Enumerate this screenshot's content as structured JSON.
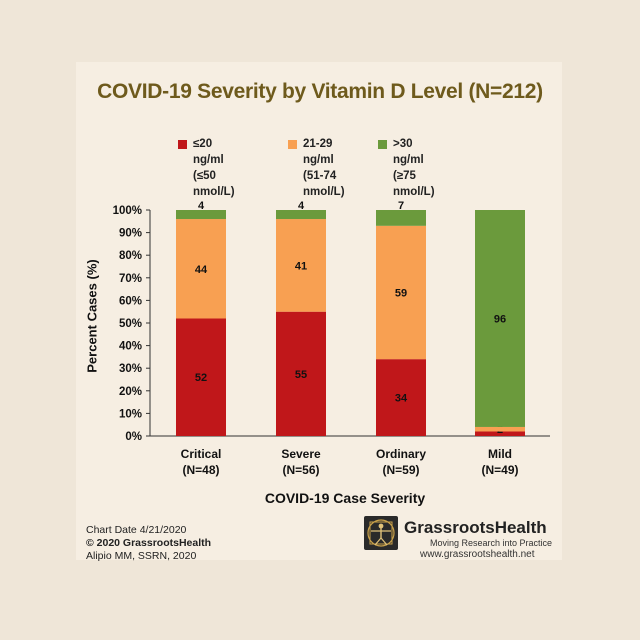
{
  "colors": {
    "low": "#c0171a",
    "mid": "#f8a052",
    "high": "#6b9a3c",
    "title": "#6e5a1c"
  },
  "chart_data": {
    "type": "bar",
    "stacked": true,
    "title": "COVID-19 Severity by Vitamin D Level (N=212)",
    "xlabel": "COVID-19 Case Severity",
    "ylabel": "Percent Cases (%)",
    "ylim": [
      0,
      100
    ],
    "yticks": [
      "0%",
      "10%",
      "20%",
      "30%",
      "40%",
      "50%",
      "60%",
      "70%",
      "80%",
      "90%",
      "100%"
    ],
    "categories": [
      "Critical\n(N=48)",
      "Severe\n(N=56)",
      "Ordinary\n(N=59)",
      "Mild\n(N=49)"
    ],
    "series": [
      {
        "name": "≤20 ng/ml\n(≤50 nmol/L)",
        "values": [
          52,
          55,
          34,
          2
        ]
      },
      {
        "name": "21-29 ng/ml\n(51-74 nmol/L)",
        "values": [
          44,
          41,
          59,
          2
        ]
      },
      {
        "name": ">30 ng/ml\n(≥75 nmol/L)",
        "values": [
          4,
          4,
          7,
          96
        ]
      }
    ],
    "data_labels": [
      [
        "52",
        "55",
        "34",
        "2"
      ],
      [
        "44",
        "41",
        "59",
        ""
      ],
      [
        "4",
        "4",
        "7",
        "96"
      ]
    ],
    "legend_position": "top",
    "grid": false
  },
  "footer": {
    "chart_date": "Chart Date 4/21/2020",
    "copyright": "© 2020 GrassrootsHealth",
    "citation": "Alipio MM, SSRN, 2020",
    "brand": "GrassrootsHealth",
    "tagline": "Moving Research into Practice",
    "url": "www.grassrootshealth.net"
  }
}
